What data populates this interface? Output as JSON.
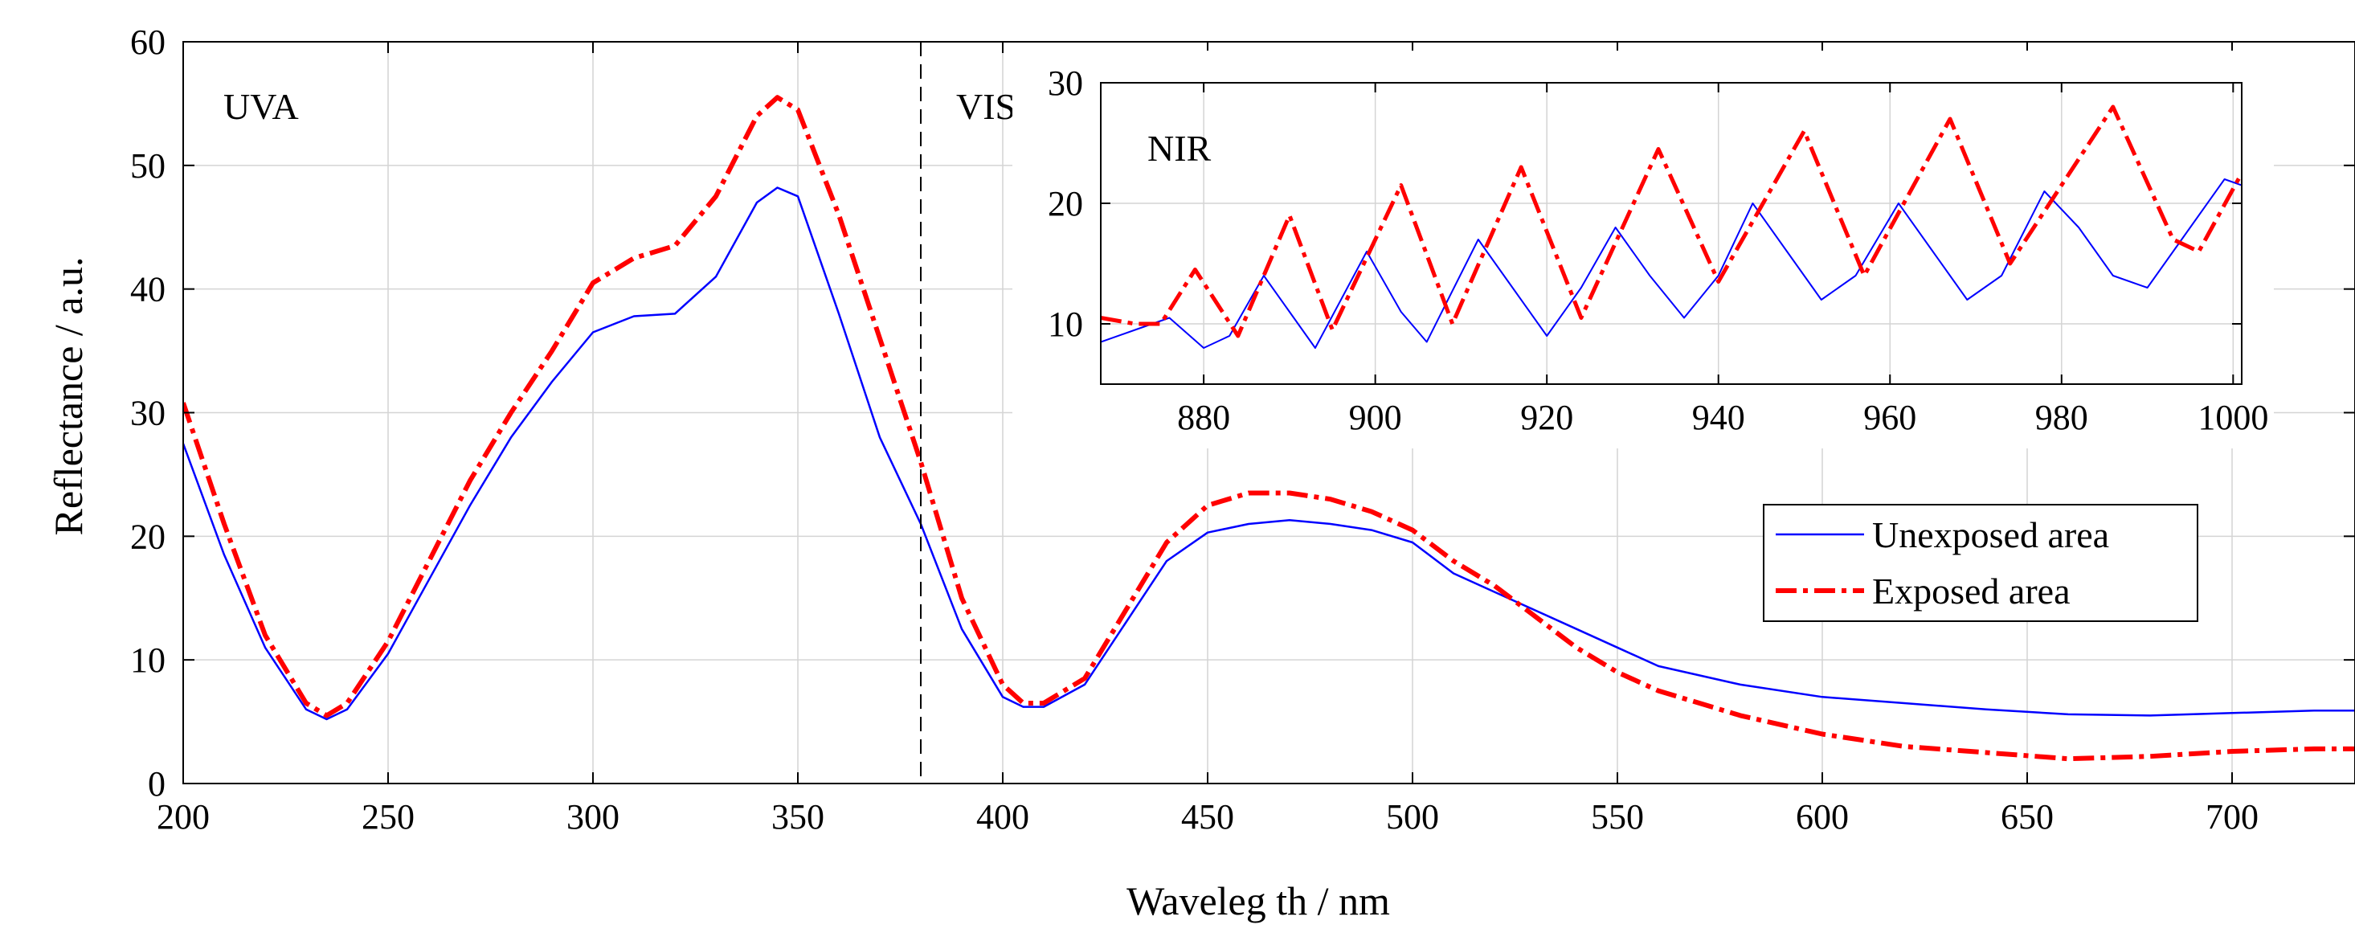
{
  "chart_data": [
    {
      "type": "line",
      "id": "main",
      "xlabel": "Waveleg​th / nm",
      "xlabel_display": "Waveleg th / nm",
      "ylabel": "Reflectance / a.u.",
      "xlim": [
        200,
        730
      ],
      "ylim": [
        0,
        60
      ],
      "xticks": [
        200,
        250,
        300,
        350,
        400,
        450,
        500,
        550,
        600,
        650,
        700
      ],
      "yticks": [
        0,
        10,
        20,
        30,
        40,
        50,
        60
      ],
      "grid": true,
      "divider_x": 380,
      "region_labels": [
        "UVA",
        "VIS"
      ],
      "series": [
        {
          "name": "Unexposed area",
          "color": "#0000ff",
          "style": "solid",
          "x": [
            200,
            210,
            220,
            230,
            235,
            240,
            250,
            260,
            270,
            280,
            290,
            300,
            310,
            320,
            330,
            340,
            345,
            350,
            360,
            370,
            380,
            390,
            400,
            405,
            410,
            420,
            430,
            440,
            450,
            460,
            470,
            480,
            490,
            500,
            510,
            520,
            530,
            540,
            550,
            560,
            580,
            600,
            620,
            640,
            660,
            680,
            700,
            720,
            730
          ],
          "y": [
            27.5,
            18.5,
            11,
            6,
            5.2,
            6,
            10.5,
            16.5,
            22.5,
            28,
            32.5,
            36.5,
            37.8,
            38,
            41,
            47,
            48.2,
            47.5,
            38,
            28,
            21,
            12.5,
            7,
            6.2,
            6.2,
            8,
            13,
            18,
            20.3,
            21,
            21.3,
            21,
            20.5,
            19.5,
            17,
            15.5,
            14,
            12.5,
            11,
            9.5,
            8,
            7,
            6.5,
            6,
            5.6,
            5.5,
            5.7,
            5.9,
            5.9
          ]
        },
        {
          "name": "Exposed area",
          "color": "#ff0000",
          "style": "dash-dot",
          "x": [
            200,
            210,
            220,
            230,
            235,
            240,
            250,
            260,
            270,
            280,
            290,
            300,
            310,
            320,
            330,
            340,
            345,
            350,
            360,
            370,
            380,
            390,
            400,
            405,
            410,
            420,
            430,
            440,
            450,
            460,
            470,
            480,
            490,
            500,
            510,
            520,
            530,
            540,
            550,
            560,
            580,
            600,
            620,
            640,
            660,
            680,
            700,
            720,
            730
          ],
          "y": [
            30.8,
            21,
            12,
            6.5,
            5.5,
            6.5,
            11.5,
            18,
            24.5,
            30,
            35,
            40.5,
            42.5,
            43.5,
            47.5,
            54,
            55.5,
            54.5,
            46,
            36,
            26,
            15,
            8,
            6.5,
            6.5,
            8.5,
            14,
            19.5,
            22.5,
            23.5,
            23.5,
            23,
            22,
            20.5,
            18,
            16,
            13.5,
            11,
            9,
            7.5,
            5.5,
            4,
            3,
            2.5,
            2,
            2.2,
            2.6,
            2.8,
            2.8
          ]
        }
      ],
      "legend": [
        "Unexposed area",
        "Exposed area"
      ],
      "legend_position": "right, below inset"
    },
    {
      "type": "line",
      "id": "inset",
      "title": "NIR",
      "xlim": [
        868,
        1001
      ],
      "ylim": [
        5,
        30
      ],
      "xticks": [
        880,
        900,
        920,
        940,
        960,
        980,
        1000
      ],
      "yticks": [
        10,
        20,
        30
      ],
      "grid": true,
      "series": [
        {
          "name": "Unexposed area",
          "color": "#0000ff",
          "style": "solid",
          "x": [
            868,
            872,
            876,
            880,
            883,
            887,
            890,
            893,
            899,
            903,
            906,
            912,
            916,
            920,
            924,
            928,
            932,
            936,
            940,
            944,
            948,
            952,
            956,
            961,
            965,
            969,
            973,
            978,
            982,
            986,
            990,
            993,
            996,
            999,
            1001
          ],
          "y": [
            8.5,
            9.5,
            10.5,
            8,
            9,
            14,
            11,
            8,
            16,
            11,
            8.5,
            17,
            13,
            9,
            13,
            18,
            14,
            10.5,
            14,
            20,
            16,
            12,
            14,
            20,
            16,
            12,
            14,
            21,
            18,
            14,
            13,
            16,
            19,
            22,
            21.5
          ]
        },
        {
          "name": "Exposed area",
          "color": "#ff0000",
          "style": "dash-dot",
          "x": [
            868,
            872,
            875,
            879,
            884,
            890,
            895,
            903,
            909,
            917,
            924,
            933,
            940,
            950,
            957,
            967,
            974,
            986,
            993,
            996,
            1001
          ],
          "y": [
            10.5,
            10,
            10,
            14.5,
            9,
            19,
            9.5,
            21.5,
            10,
            23,
            10.5,
            24.5,
            13.5,
            26,
            14,
            27,
            15,
            28,
            17,
            16,
            22.5
          ]
        }
      ]
    }
  ]
}
